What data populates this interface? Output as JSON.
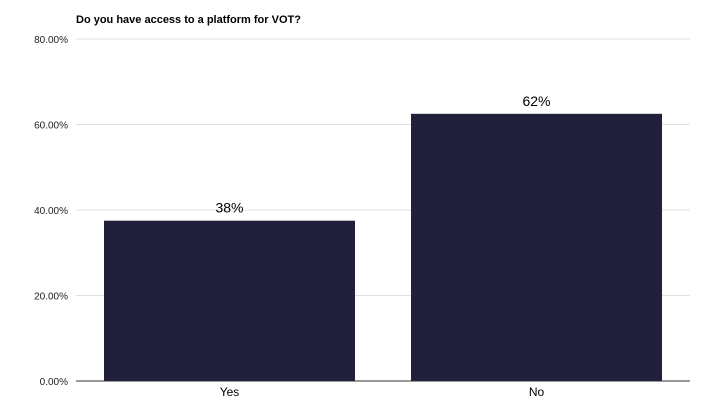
{
  "chart_data": {
    "type": "bar",
    "title": "Do you have access to a platform for VOT?",
    "xlabel": "",
    "ylabel": "",
    "categories": [
      "Yes",
      "No"
    ],
    "values": [
      37.5,
      62.5
    ],
    "data_labels": [
      "38%",
      "62%"
    ],
    "ylim": [
      0,
      80
    ],
    "yticks": [
      0,
      20,
      40,
      60,
      80
    ],
    "ytick_labels": [
      "0.00%",
      "20.00%",
      "40.00%",
      "60.00%",
      "80.00%"
    ],
    "grid": true,
    "legend": "none",
    "colors": {
      "bar": "#20203a",
      "grid": "#e0e0e0",
      "axis": "#333333"
    }
  }
}
